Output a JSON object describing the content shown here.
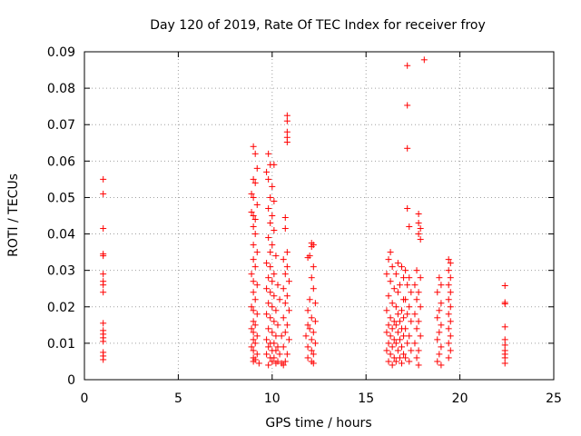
{
  "chart_data": {
    "type": "scatter",
    "title": "Day 120 of 2019, Rate Of TEC Index for receiver froy",
    "xlabel": "GPS time / hours",
    "ylabel": "ROTI / TECUs",
    "xlim": [
      0,
      25
    ],
    "ylim": [
      0,
      0.09
    ],
    "xticks": [
      0,
      5,
      10,
      15,
      20,
      25
    ],
    "xtick_labels": [
      "0",
      "5",
      "10",
      "15",
      "20",
      "25"
    ],
    "yticks": [
      0,
      0.01,
      0.02,
      0.03,
      0.04,
      0.05,
      0.06,
      0.07,
      0.08,
      0.09
    ],
    "ytick_labels": [
      "0",
      "0.01",
      "0.02",
      "0.03",
      "0.04",
      "0.05",
      "0.06",
      "0.07",
      "0.08",
      "0.09"
    ],
    "grid": true,
    "marker": "+",
    "color": "#ff0000",
    "series": [
      {
        "name": "ROTI",
        "points": [
          [
            1.0,
            0.055
          ],
          [
            1.0,
            0.051
          ],
          [
            1.0,
            0.0415
          ],
          [
            1.0,
            0.0345
          ],
          [
            1.0,
            0.034
          ],
          [
            1.0,
            0.029
          ],
          [
            1.0,
            0.027
          ],
          [
            1.0,
            0.026
          ],
          [
            1.0,
            0.024
          ],
          [
            1.0,
            0.0155
          ],
          [
            1.0,
            0.0135
          ],
          [
            1.0,
            0.0125
          ],
          [
            1.0,
            0.0115
          ],
          [
            1.0,
            0.0105
          ],
          [
            1.0,
            0.0075
          ],
          [
            1.0,
            0.0065
          ],
          [
            1.0,
            0.0055
          ],
          [
            9.0,
            0.064
          ],
          [
            9.1,
            0.062
          ],
          [
            9.2,
            0.058
          ],
          [
            9.0,
            0.055
          ],
          [
            9.1,
            0.054
          ],
          [
            8.9,
            0.051
          ],
          [
            9.0,
            0.05
          ],
          [
            9.2,
            0.048
          ],
          [
            8.9,
            0.046
          ],
          [
            9.0,
            0.045
          ],
          [
            9.1,
            0.044
          ],
          [
            9.0,
            0.042
          ],
          [
            9.1,
            0.04
          ],
          [
            9.0,
            0.037
          ],
          [
            9.2,
            0.035
          ],
          [
            9.0,
            0.033
          ],
          [
            9.1,
            0.031
          ],
          [
            8.9,
            0.029
          ],
          [
            9.0,
            0.027
          ],
          [
            9.2,
            0.026
          ],
          [
            9.0,
            0.024
          ],
          [
            9.1,
            0.022
          ],
          [
            8.9,
            0.02
          ],
          [
            9.0,
            0.019
          ],
          [
            9.2,
            0.018
          ],
          [
            9.0,
            0.016
          ],
          [
            9.1,
            0.015
          ],
          [
            8.9,
            0.014
          ],
          [
            9.0,
            0.013
          ],
          [
            9.2,
            0.012
          ],
          [
            9.0,
            0.011
          ],
          [
            9.1,
            0.01
          ],
          [
            8.9,
            0.009
          ],
          [
            9.0,
            0.008
          ],
          [
            9.2,
            0.007
          ],
          [
            9.0,
            0.006
          ],
          [
            9.1,
            0.0055
          ],
          [
            9.0,
            0.005
          ],
          [
            9.3,
            0.0045
          ],
          [
            9.8,
            0.062
          ],
          [
            9.9,
            0.059
          ],
          [
            10.1,
            0.059
          ],
          [
            9.7,
            0.057
          ],
          [
            9.8,
            0.055
          ],
          [
            10.0,
            0.053
          ],
          [
            9.9,
            0.05
          ],
          [
            10.1,
            0.049
          ],
          [
            9.8,
            0.047
          ],
          [
            10.0,
            0.045
          ],
          [
            9.9,
            0.043
          ],
          [
            10.1,
            0.041
          ],
          [
            9.8,
            0.039
          ],
          [
            10.0,
            0.037
          ],
          [
            9.9,
            0.035
          ],
          [
            10.2,
            0.034
          ],
          [
            9.7,
            0.032
          ],
          [
            9.9,
            0.031
          ],
          [
            10.1,
            0.029
          ],
          [
            9.8,
            0.028
          ],
          [
            10.0,
            0.027
          ],
          [
            10.3,
            0.026
          ],
          [
            9.7,
            0.025
          ],
          [
            9.9,
            0.024
          ],
          [
            10.1,
            0.023
          ],
          [
            10.4,
            0.022
          ],
          [
            9.8,
            0.021
          ],
          [
            10.0,
            0.02
          ],
          [
            10.2,
            0.019
          ],
          [
            9.7,
            0.018
          ],
          [
            9.9,
            0.017
          ],
          [
            10.1,
            0.016
          ],
          [
            10.3,
            0.015
          ],
          [
            9.8,
            0.014
          ],
          [
            10.0,
            0.013
          ],
          [
            10.2,
            0.012
          ],
          [
            10.5,
            0.012
          ],
          [
            9.7,
            0.011
          ],
          [
            9.9,
            0.01
          ],
          [
            10.1,
            0.01
          ],
          [
            10.3,
            0.009
          ],
          [
            9.8,
            0.009
          ],
          [
            10.0,
            0.008
          ],
          [
            10.2,
            0.008
          ],
          [
            10.4,
            0.007
          ],
          [
            9.7,
            0.007
          ],
          [
            9.9,
            0.006
          ],
          [
            10.1,
            0.006
          ],
          [
            10.3,
            0.005
          ],
          [
            10.0,
            0.005
          ],
          [
            10.2,
            0.0045
          ],
          [
            10.5,
            0.0045
          ],
          [
            10.6,
            0.004
          ],
          [
            9.8,
            0.004
          ],
          [
            10.8,
            0.0725
          ],
          [
            10.8,
            0.071
          ],
          [
            10.8,
            0.068
          ],
          [
            10.8,
            0.0665
          ],
          [
            10.8,
            0.0652
          ],
          [
            10.7,
            0.0445
          ],
          [
            10.7,
            0.0415
          ],
          [
            10.8,
            0.035
          ],
          [
            10.6,
            0.033
          ],
          [
            10.8,
            0.031
          ],
          [
            10.7,
            0.029
          ],
          [
            10.9,
            0.027
          ],
          [
            10.6,
            0.025
          ],
          [
            10.8,
            0.023
          ],
          [
            10.7,
            0.021
          ],
          [
            10.9,
            0.019
          ],
          [
            10.6,
            0.017
          ],
          [
            10.8,
            0.015
          ],
          [
            10.7,
            0.013
          ],
          [
            10.9,
            0.011
          ],
          [
            10.6,
            0.009
          ],
          [
            10.8,
            0.007
          ],
          [
            10.7,
            0.005
          ],
          [
            12.1,
            0.0375
          ],
          [
            12.2,
            0.037
          ],
          [
            12.1,
            0.0365
          ],
          [
            12.0,
            0.034
          ],
          [
            12.2,
            0.031
          ],
          [
            11.9,
            0.0335
          ],
          [
            12.1,
            0.028
          ],
          [
            12.2,
            0.025
          ],
          [
            12.0,
            0.022
          ],
          [
            12.3,
            0.021
          ],
          [
            11.9,
            0.019
          ],
          [
            12.1,
            0.017
          ],
          [
            12.3,
            0.016
          ],
          [
            11.9,
            0.015
          ],
          [
            12.0,
            0.014
          ],
          [
            12.2,
            0.013
          ],
          [
            11.8,
            0.012
          ],
          [
            12.1,
            0.011
          ],
          [
            12.3,
            0.01
          ],
          [
            11.9,
            0.009
          ],
          [
            12.1,
            0.008
          ],
          [
            12.2,
            0.007
          ],
          [
            11.9,
            0.006
          ],
          [
            12.1,
            0.005
          ],
          [
            12.2,
            0.0045
          ],
          [
            16.3,
            0.035
          ],
          [
            16.2,
            0.033
          ],
          [
            16.4,
            0.031
          ],
          [
            16.1,
            0.029
          ],
          [
            16.3,
            0.027
          ],
          [
            16.5,
            0.025
          ],
          [
            16.2,
            0.023
          ],
          [
            16.4,
            0.021
          ],
          [
            16.1,
            0.019
          ],
          [
            16.3,
            0.017
          ],
          [
            16.5,
            0.016
          ],
          [
            16.2,
            0.015
          ],
          [
            16.4,
            0.014
          ],
          [
            16.1,
            0.013
          ],
          [
            16.3,
            0.012
          ],
          [
            16.5,
            0.011
          ],
          [
            16.2,
            0.01
          ],
          [
            16.4,
            0.009
          ],
          [
            16.1,
            0.008
          ],
          [
            16.3,
            0.007
          ],
          [
            16.5,
            0.006
          ],
          [
            16.2,
            0.005
          ],
          [
            16.4,
            0.004
          ],
          [
            16.7,
            0.032
          ],
          [
            16.9,
            0.031
          ],
          [
            16.6,
            0.029
          ],
          [
            17.0,
            0.028
          ],
          [
            16.8,
            0.026
          ],
          [
            16.7,
            0.024
          ],
          [
            17.0,
            0.022
          ],
          [
            16.6,
            0.02
          ],
          [
            16.9,
            0.019
          ],
          [
            16.7,
            0.018
          ],
          [
            17.0,
            0.017
          ],
          [
            16.8,
            0.016
          ],
          [
            16.6,
            0.015
          ],
          [
            16.9,
            0.014
          ],
          [
            16.7,
            0.013
          ],
          [
            17.0,
            0.012
          ],
          [
            16.8,
            0.011
          ],
          [
            16.6,
            0.01
          ],
          [
            16.9,
            0.009
          ],
          [
            16.7,
            0.008
          ],
          [
            17.0,
            0.007
          ],
          [
            16.8,
            0.006
          ],
          [
            16.6,
            0.005
          ],
          [
            16.9,
            0.0045
          ],
          [
            17.2,
            0.0862
          ],
          [
            17.2,
            0.0753
          ],
          [
            17.2,
            0.0635
          ],
          [
            17.2,
            0.047
          ],
          [
            17.3,
            0.042
          ],
          [
            17.1,
            0.03
          ],
          [
            17.3,
            0.028
          ],
          [
            17.2,
            0.026
          ],
          [
            17.4,
            0.024
          ],
          [
            17.1,
            0.022
          ],
          [
            17.3,
            0.02
          ],
          [
            17.2,
            0.018
          ],
          [
            17.4,
            0.016
          ],
          [
            17.1,
            0.014
          ],
          [
            17.3,
            0.012
          ],
          [
            17.2,
            0.01
          ],
          [
            17.4,
            0.008
          ],
          [
            17.1,
            0.006
          ],
          [
            17.3,
            0.005
          ],
          [
            18.1,
            0.0878
          ],
          [
            17.8,
            0.0455
          ],
          [
            17.8,
            0.043
          ],
          [
            17.9,
            0.0415
          ],
          [
            17.8,
            0.04
          ],
          [
            17.9,
            0.0385
          ],
          [
            17.7,
            0.03
          ],
          [
            17.9,
            0.028
          ],
          [
            17.6,
            0.026
          ],
          [
            17.8,
            0.024
          ],
          [
            17.7,
            0.022
          ],
          [
            17.9,
            0.02
          ],
          [
            17.6,
            0.018
          ],
          [
            17.8,
            0.016
          ],
          [
            17.7,
            0.014
          ],
          [
            17.9,
            0.012
          ],
          [
            17.6,
            0.01
          ],
          [
            17.8,
            0.008
          ],
          [
            17.7,
            0.006
          ],
          [
            17.8,
            0.004
          ],
          [
            18.9,
            0.028
          ],
          [
            19.0,
            0.026
          ],
          [
            18.8,
            0.024
          ],
          [
            19.0,
            0.021
          ],
          [
            18.9,
            0.019
          ],
          [
            18.8,
            0.017
          ],
          [
            19.0,
            0.015
          ],
          [
            18.9,
            0.013
          ],
          [
            18.8,
            0.011
          ],
          [
            19.0,
            0.009
          ],
          [
            18.9,
            0.007
          ],
          [
            18.8,
            0.005
          ],
          [
            19.0,
            0.004
          ],
          [
            19.4,
            0.033
          ],
          [
            19.5,
            0.032
          ],
          [
            19.4,
            0.03
          ],
          [
            19.5,
            0.028
          ],
          [
            19.4,
            0.026
          ],
          [
            19.5,
            0.024
          ],
          [
            19.4,
            0.022
          ],
          [
            19.5,
            0.02
          ],
          [
            19.4,
            0.018
          ],
          [
            19.5,
            0.016
          ],
          [
            19.4,
            0.014
          ],
          [
            19.5,
            0.012
          ],
          [
            19.4,
            0.01
          ],
          [
            19.5,
            0.008
          ],
          [
            19.4,
            0.006
          ],
          [
            22.4,
            0.0258
          ],
          [
            22.4,
            0.0212
          ],
          [
            22.4,
            0.0208
          ],
          [
            22.4,
            0.0145
          ],
          [
            22.4,
            0.011
          ],
          [
            22.4,
            0.0095
          ],
          [
            22.4,
            0.008
          ],
          [
            22.4,
            0.007
          ],
          [
            22.4,
            0.006
          ],
          [
            22.4,
            0.0045
          ]
        ]
      }
    ]
  }
}
